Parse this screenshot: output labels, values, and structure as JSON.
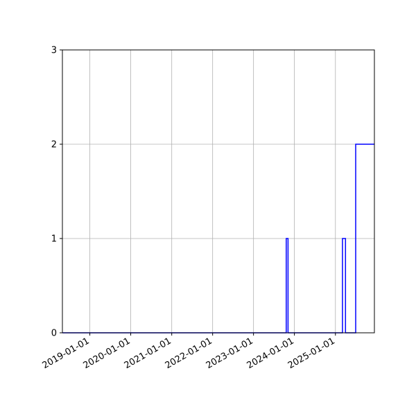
{
  "chart_data": {
    "type": "line",
    "drawstyle": "steps-post",
    "title": "",
    "xlabel": "",
    "ylabel": "",
    "grid": true,
    "legend": "none",
    "xlim": [
      "2018-05-01",
      "2025-12-15"
    ],
    "ylim": [
      0,
      3
    ],
    "x_ticks": [
      "2019-01-01",
      "2020-01-01",
      "2021-01-01",
      "2022-01-01",
      "2023-01-01",
      "2024-01-01",
      "2025-01-01"
    ],
    "y_ticks": [
      0,
      1,
      2,
      3
    ],
    "series": [
      {
        "color": "#0000ff",
        "x": [
          "2018-05-01",
          "2023-10-20",
          "2023-11-05",
          "2025-03-05",
          "2025-04-01",
          "2025-07-01",
          "2025-12-15"
        ],
        "y": [
          0,
          1,
          0,
          1,
          0,
          2,
          2
        ]
      }
    ]
  }
}
